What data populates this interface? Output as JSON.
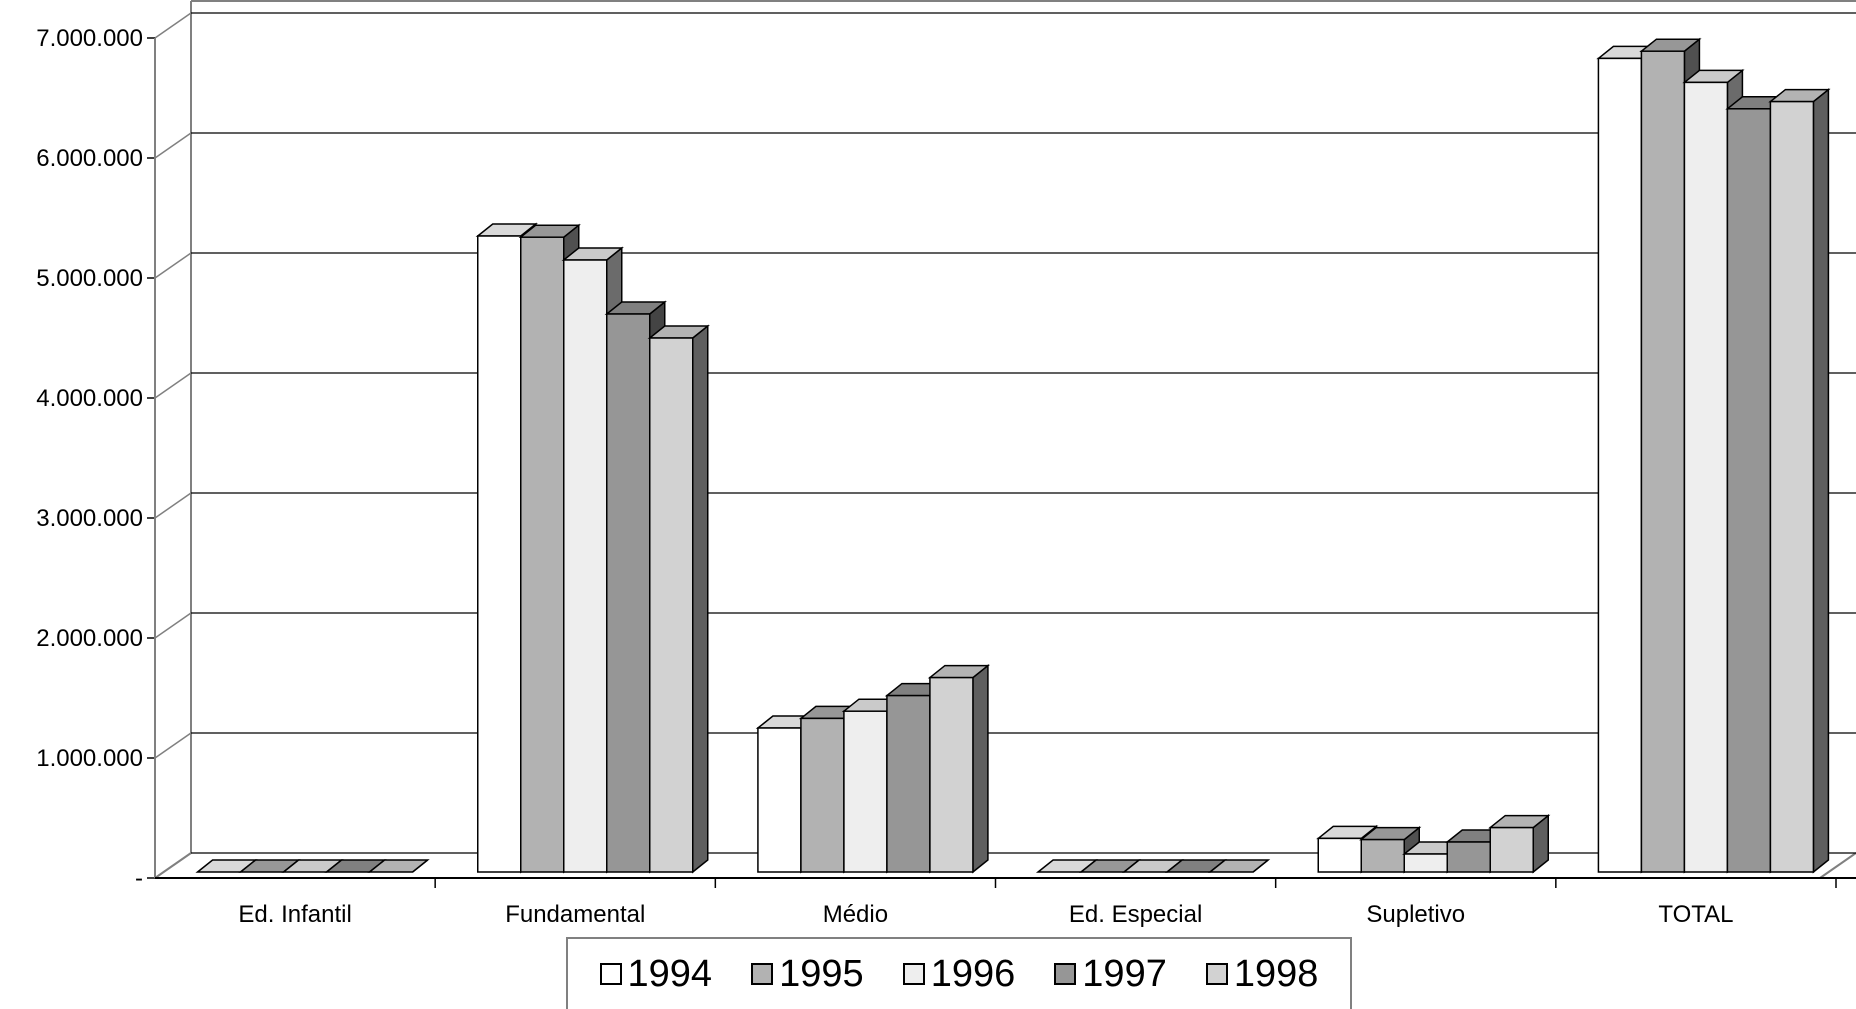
{
  "chart_data": {
    "type": "bar",
    "title": "",
    "xlabel": "",
    "ylabel": "",
    "categories": [
      "Ed. Infantil",
      "Fundamental",
      "Médio",
      "Ed. Especial",
      "Supletivo",
      "TOTAL"
    ],
    "series": [
      {
        "name": "1994",
        "color": "#ffffff",
        "values": [
          0,
          5300000,
          1200000,
          0,
          280000,
          6780000
        ]
      },
      {
        "name": "1995",
        "color": "#b2b2b2",
        "values": [
          0,
          5290000,
          1280000,
          0,
          270000,
          6840000
        ]
      },
      {
        "name": "1996",
        "color": "#eeeeee",
        "values": [
          0,
          5100000,
          1340000,
          0,
          150000,
          6580000
        ]
      },
      {
        "name": "1997",
        "color": "#969696",
        "values": [
          0,
          4650000,
          1470000,
          0,
          250000,
          6360000
        ]
      },
      {
        "name": "1998",
        "color": "#d2d2d2",
        "values": [
          0,
          4450000,
          1620000,
          0,
          370000,
          6420000
        ]
      }
    ],
    "ylim": [
      0,
      7000000
    ],
    "yticks": [
      "-",
      "1.000.000",
      "2.000.000",
      "3.000.000",
      "4.000.000",
      "5.000.000",
      "6.000.000",
      "7.000.000"
    ],
    "grid": true,
    "legend": "bottom"
  }
}
